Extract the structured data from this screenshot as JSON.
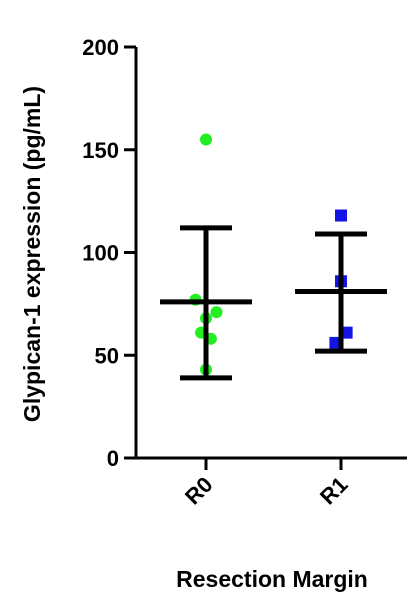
{
  "chart_data": {
    "type": "scatter",
    "title": "",
    "xlabel": "Resection Margin",
    "ylabel": "Glypican-1 expression (pg/mL)",
    "ylim": [
      0,
      200
    ],
    "yticks": [
      0,
      50,
      100,
      150,
      200
    ],
    "grid": false,
    "categories": [
      "R0",
      "R1"
    ],
    "series": [
      {
        "category": "R0",
        "marker": "circle",
        "color": "#22ee22",
        "points": [
          {
            "x": -0.15,
            "y": 77
          },
          {
            "x": 0.0,
            "y": 155
          },
          {
            "x": -0.07,
            "y": 61
          },
          {
            "x": 0.0,
            "y": 68
          },
          {
            "x": 0.07,
            "y": 58
          },
          {
            "x": 0.15,
            "y": 71
          },
          {
            "x": 0.0,
            "y": 43
          }
        ],
        "mean": 76,
        "error_upper": 112,
        "error_lower": 39
      },
      {
        "category": "R1",
        "marker": "square",
        "color": "#1414e6",
        "points": [
          {
            "x": 0.0,
            "y": 118
          },
          {
            "x": 0.0,
            "y": 86
          },
          {
            "x": 0.08,
            "y": 61
          },
          {
            "x": -0.08,
            "y": 56
          }
        ],
        "mean": 81,
        "error_upper": 109,
        "error_lower": 52
      }
    ]
  }
}
